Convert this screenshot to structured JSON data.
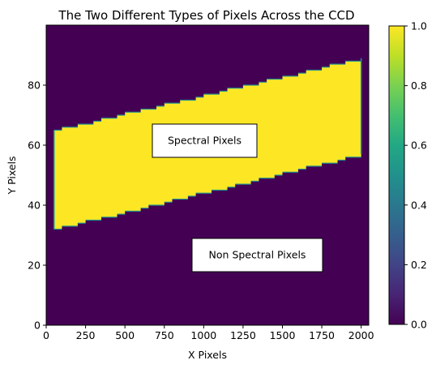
{
  "chart_data": {
    "type": "heatmap",
    "title": "The Two Different Types of Pixels Across the CCD",
    "xlabel": "X Pixels",
    "ylabel": "Y Pixels",
    "xlim": [
      0,
      2048
    ],
    "ylim": [
      0,
      100
    ],
    "xticks": [
      0,
      250,
      500,
      750,
      1000,
      1250,
      1500,
      1750,
      2000
    ],
    "yticks": [
      0,
      20,
      40,
      60,
      80
    ],
    "colorbar": {
      "colormap": "viridis",
      "range": [
        0,
        1
      ],
      "ticks": [
        0.0,
        0.2,
        0.4,
        0.6,
        0.8,
        1.0
      ],
      "tick_labels": [
        "0.0",
        "0.2",
        "0.4",
        "0.6",
        "0.8",
        "1.0"
      ]
    },
    "colors": {
      "low": "#440154",
      "high": "#fde725"
    },
    "spectral_region": {
      "value": 1,
      "x_range": [
        50,
        2000
      ],
      "lower_edge": {
        "x": [
          50,
          2000
        ],
        "y": [
          32,
          57
        ]
      },
      "upper_edge": {
        "x": [
          50,
          2000
        ],
        "y": [
          65,
          89
        ]
      },
      "step_width_x": 50
    },
    "background_value": 0,
    "annotations": [
      {
        "text": "Spectral Pixels",
        "x": 1015,
        "y": 61
      },
      {
        "text": "Non Spectral Pixels",
        "x": 1350,
        "y": 23
      }
    ],
    "grid": false
  }
}
